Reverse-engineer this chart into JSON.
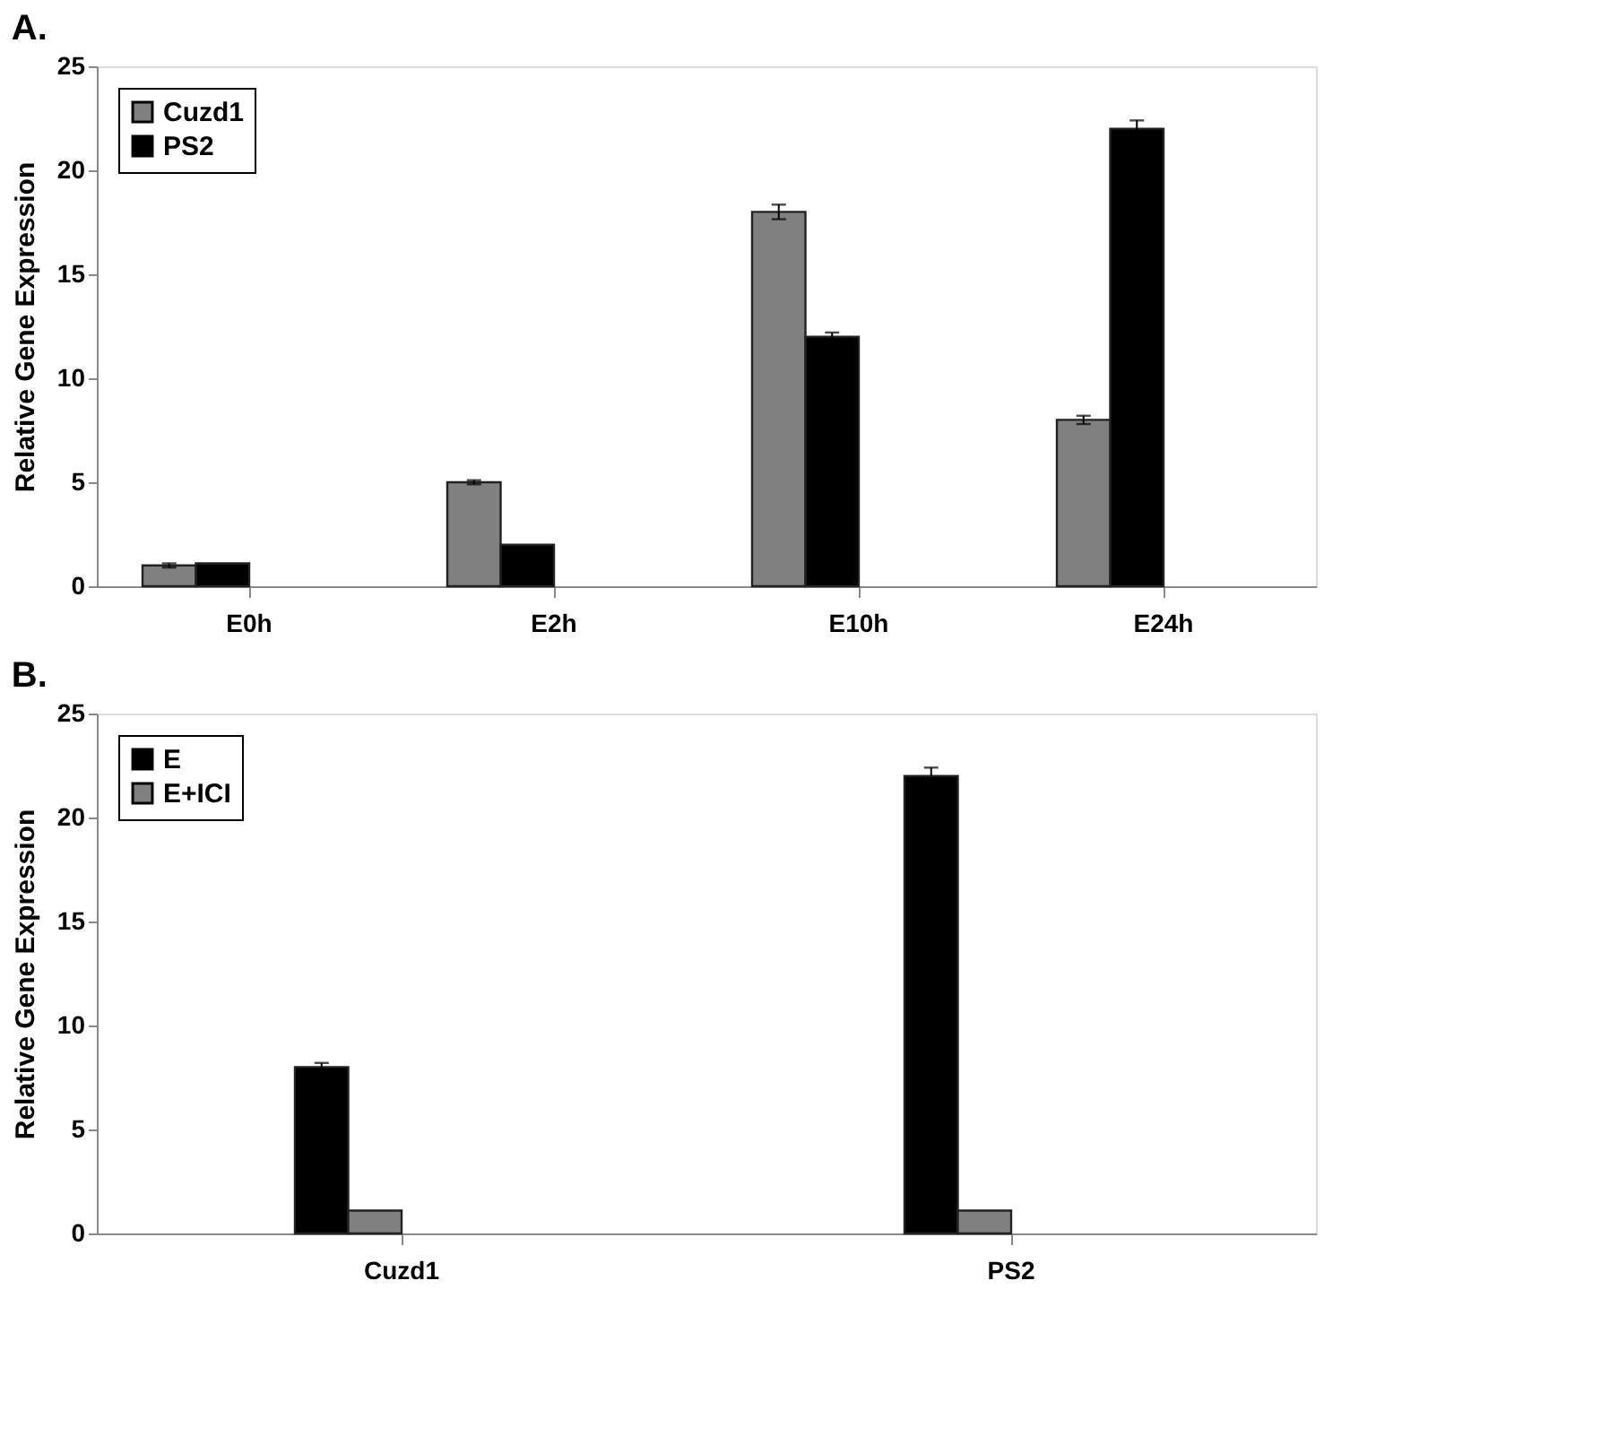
{
  "chart_data": [
    {
      "type": "bar",
      "title": "A.",
      "ylabel": "Relative Gene Expression",
      "categories": [
        "E0h",
        "E2h",
        "E10h",
        "E24h"
      ],
      "series": [
        {
          "name": "Cuzd1",
          "color": "#808080",
          "values": [
            1,
            5,
            18,
            8
          ],
          "errors": [
            0.1,
            0.1,
            0.35,
            0.2
          ]
        },
        {
          "name": "PS2",
          "color": "#000000",
          "values": [
            1.1,
            2,
            12,
            22
          ],
          "errors": [
            null,
            null,
            0.2,
            0.4
          ]
        }
      ],
      "ylim": [
        0,
        25
      ],
      "yticks": [
        0,
        5,
        10,
        15,
        20,
        25
      ],
      "grid": false,
      "legend": "top left"
    },
    {
      "type": "bar",
      "title": "B.",
      "ylabel": "Relative Gene Expression",
      "categories": [
        "Cuzd1",
        "PS2"
      ],
      "series": [
        {
          "name": "E",
          "color": "#000000",
          "values": [
            8,
            22
          ],
          "errors": [
            0.2,
            0.4
          ]
        },
        {
          "name": "E+ICI",
          "color": "#808080",
          "values": [
            1.1,
            1.1
          ]
        }
      ],
      "ylim": [
        0,
        25
      ],
      "yticks": [
        0,
        5,
        10,
        15,
        20,
        25
      ],
      "grid": false,
      "legend": "top left"
    }
  ]
}
